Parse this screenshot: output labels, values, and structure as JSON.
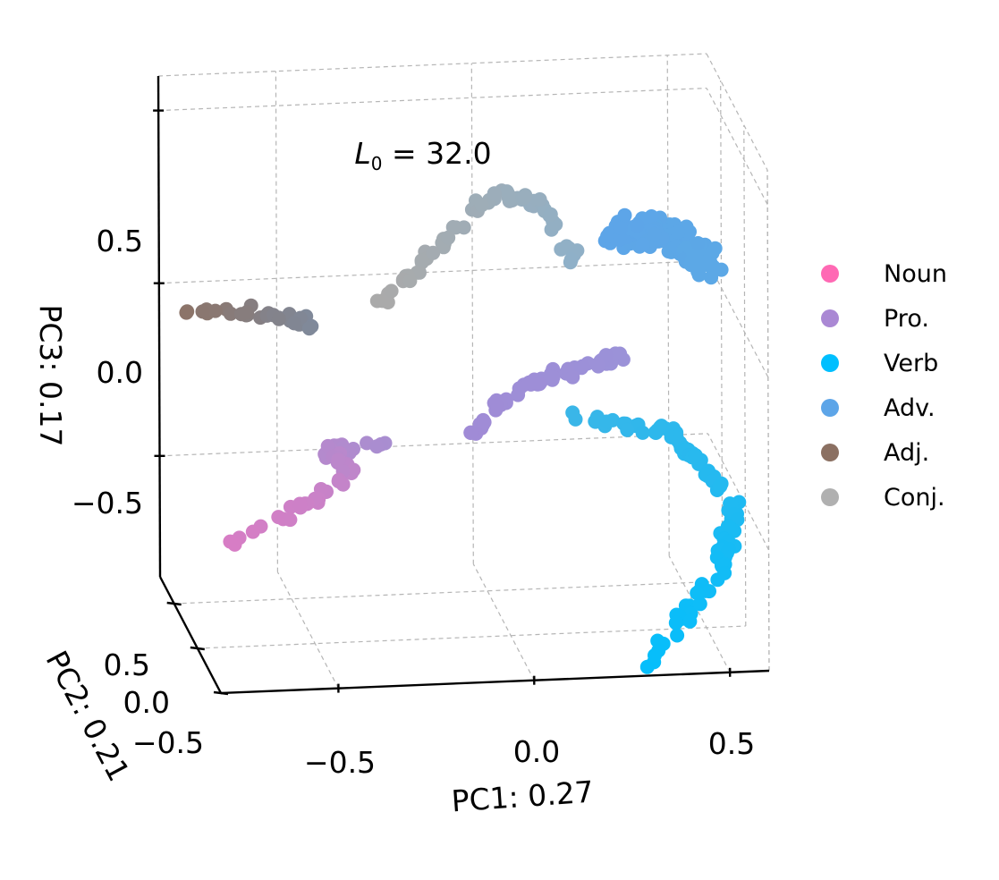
{
  "chart_data": {
    "type": "scatter",
    "projection": "3d",
    "title": "L0 = 32.0",
    "title_symbol": "L",
    "title_subscript": "0",
    "title_rest": " = 32.0",
    "xlabel": "PC1: 0.27",
    "ylabel": "PC2: 0.21",
    "zlabel": "PC3: 0.17",
    "xlim": [
      -0.8,
      0.6
    ],
    "ylim": [
      -0.5,
      0.8
    ],
    "zlim": [
      -0.85,
      0.6
    ],
    "x_ticks": [
      -0.5,
      0.0,
      0.5
    ],
    "x_tick_labels": [
      "−0.5",
      "0.0",
      "0.5"
    ],
    "y_ticks": [
      -0.5,
      0.0,
      0.5
    ],
    "y_tick_labels": [
      "−0.5",
      "0.0",
      "0.5"
    ],
    "z_ticks": [
      -0.5,
      0.0,
      0.5
    ],
    "z_tick_labels": [
      "−0.5",
      "0.0",
      "0.5"
    ],
    "legend_position": "right",
    "legend": [
      {
        "name": "Noun",
        "color": "#FF69B4"
      },
      {
        "name": "Pro.",
        "color": "#AA88D4"
      },
      {
        "name": "Verb",
        "color": "#00BFFF"
      },
      {
        "name": "Adv.",
        "color": "#5DA5E8"
      },
      {
        "name": "Adj.",
        "color": "#8B7062"
      },
      {
        "name": "Conj.",
        "color": "#B0B0B0"
      }
    ],
    "clusters": [
      {
        "name": "noun-pronoun-arm",
        "n": 55,
        "color_from": "#D97CC4",
        "color_to": "#A88ED0",
        "path": [
          [
            -0.8,
            -0.3,
            -0.5
          ],
          [
            -0.55,
            -0.2,
            -0.4
          ],
          [
            -0.42,
            -0.15,
            -0.32
          ],
          [
            -0.48,
            -0.12,
            -0.26
          ],
          [
            -0.33,
            -0.1,
            -0.25
          ]
        ]
      },
      {
        "name": "pronoun-arc",
        "n": 60,
        "color_from": "#A08BD6",
        "color_to": "#9B92D8",
        "path": [
          [
            -0.1,
            -0.05,
            -0.25
          ],
          [
            0.0,
            0.0,
            -0.15
          ],
          [
            0.15,
            0.05,
            -0.1
          ],
          [
            0.3,
            0.1,
            -0.08
          ]
        ]
      },
      {
        "name": "adjective-line",
        "n": 30,
        "color_from": "#8C7468",
        "color_to": "#7F8A9C",
        "path": [
          [
            -0.8,
            0.2,
            0.08
          ],
          [
            -0.62,
            0.2,
            0.06
          ],
          [
            -0.48,
            0.2,
            0.02
          ]
        ]
      },
      {
        "name": "conjunction-arc",
        "n": 70,
        "color_from": "#AAAAAA",
        "color_to": "#8FB0C8",
        "path": [
          [
            -0.3,
            0.2,
            0.08
          ],
          [
            -0.15,
            0.25,
            0.22
          ],
          [
            0.0,
            0.3,
            0.35
          ],
          [
            0.12,
            0.3,
            0.32
          ],
          [
            0.2,
            0.28,
            0.15
          ]
        ]
      },
      {
        "name": "adverb-blob",
        "n": 160,
        "color_from": "#5DA5E8",
        "color_to": "#5CA8E6",
        "path": [
          [
            0.3,
            0.4,
            0.2
          ],
          [
            0.45,
            0.45,
            0.18
          ],
          [
            0.55,
            0.4,
            0.1
          ]
        ]
      },
      {
        "name": "verb-arm",
        "n": 110,
        "color_from": "#3AB6E8",
        "color_to": "#05BEFB",
        "path": [
          [
            0.15,
            -0.1,
            -0.2
          ],
          [
            0.4,
            -0.1,
            -0.25
          ],
          [
            0.55,
            -0.2,
            -0.45
          ],
          [
            0.5,
            -0.3,
            -0.6
          ],
          [
            0.3,
            -0.4,
            -0.85
          ]
        ]
      }
    ]
  }
}
